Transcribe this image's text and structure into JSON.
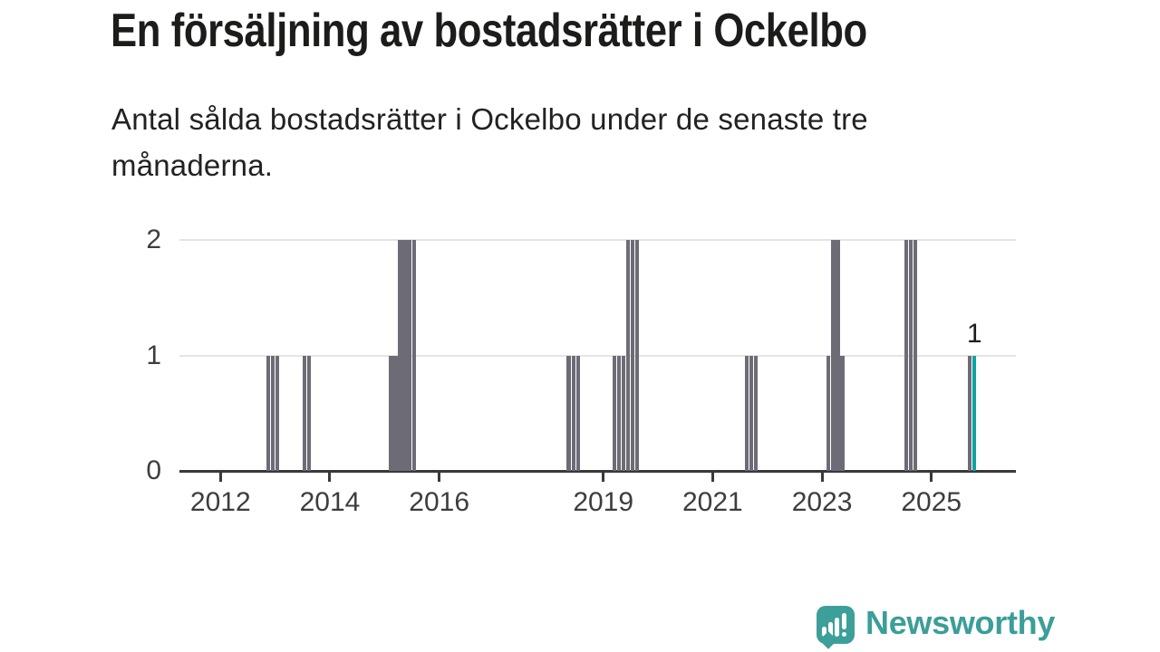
{
  "header": {
    "title": "En försäljning av bostadsrätter i Ockelbo",
    "subtitle": "Antal sålda bostadsrätter i Ockelbo under de senaste tre månaderna.",
    "subtitle_lines": [
      "Antal sålda bostadsrätter i Ockelbo under de senaste tre",
      "månaderna."
    ]
  },
  "chart_data": {
    "type": "bar",
    "title": "En försäljning av bostadsrätter i Ockelbo",
    "subtitle": "Antal sålda bostadsrätter i Ockelbo under de senaste tre månaderna.",
    "xlabel": "",
    "ylabel": "",
    "ylim": [
      0,
      2
    ],
    "yticks": [
      0,
      1,
      2
    ],
    "xtick_years": [
      "2012",
      "2014",
      "2016",
      "2019",
      "2021",
      "2023",
      "2025"
    ],
    "xlim_months": [
      "2011-04",
      "2026-07"
    ],
    "grid": "horizontal-only",
    "bar_color": "#6d6c76",
    "highlight_color": "#0ba4a0",
    "annotation": {
      "text": "1",
      "month": "2025-10"
    },
    "points": [
      {
        "month": "2012-11",
        "value": 1
      },
      {
        "month": "2012-12",
        "value": 1
      },
      {
        "month": "2013-01",
        "value": 1
      },
      {
        "month": "2013-07",
        "value": 1
      },
      {
        "month": "2013-08",
        "value": 1
      },
      {
        "month": "2015-02",
        "value": 1
      },
      {
        "month": "2015-03",
        "value": 1
      },
      {
        "month": "2015-04",
        "value": 2
      },
      {
        "month": "2015-05",
        "value": 2
      },
      {
        "month": "2015-06",
        "value": 2
      },
      {
        "month": "2015-07",
        "value": 2
      },
      {
        "month": "2018-05",
        "value": 1
      },
      {
        "month": "2018-06",
        "value": 1
      },
      {
        "month": "2018-07",
        "value": 1
      },
      {
        "month": "2019-03",
        "value": 1
      },
      {
        "month": "2019-04",
        "value": 1
      },
      {
        "month": "2019-05",
        "value": 1
      },
      {
        "month": "2019-06",
        "value": 2
      },
      {
        "month": "2019-07",
        "value": 2
      },
      {
        "month": "2019-08",
        "value": 2
      },
      {
        "month": "2021-08",
        "value": 1
      },
      {
        "month": "2021-09",
        "value": 1
      },
      {
        "month": "2021-10",
        "value": 1
      },
      {
        "month": "2023-02",
        "value": 1
      },
      {
        "month": "2023-03",
        "value": 2
      },
      {
        "month": "2023-04",
        "value": 2
      },
      {
        "month": "2023-05",
        "value": 1
      },
      {
        "month": "2024-07",
        "value": 2
      },
      {
        "month": "2024-08",
        "value": 2
      },
      {
        "month": "2024-09",
        "value": 2
      },
      {
        "month": "2025-09",
        "value": 1
      },
      {
        "month": "2025-10",
        "value": 1,
        "highlight": true
      }
    ]
  },
  "footer": {
    "brand": "Newsworthy",
    "brand_color": "#3b9e99",
    "logo_icon": "speech-bubble-bar-chart-icon"
  }
}
